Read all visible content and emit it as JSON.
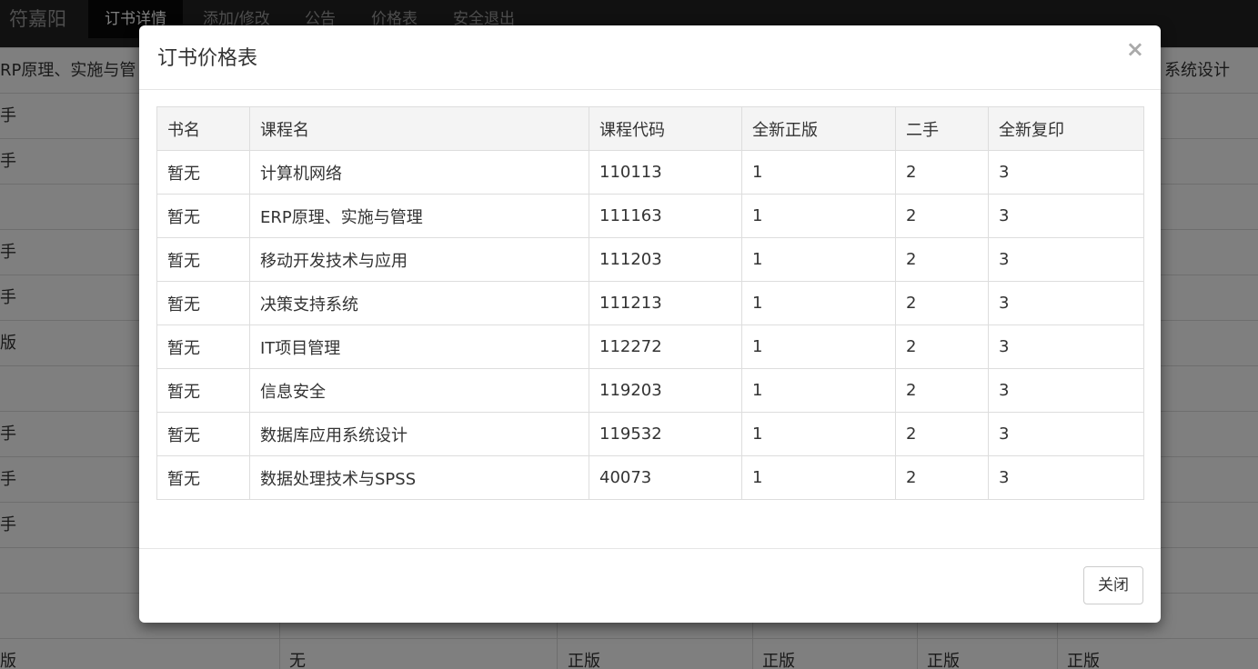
{
  "nav": {
    "brand": "符嘉阳",
    "items": [
      "订书详情",
      "添加/修改",
      "公告",
      "价格表",
      "安全退出"
    ]
  },
  "background": {
    "rows": [
      [
        "RP原理、实施与管",
        null,
        null,
        null,
        null,
        "系统设计"
      ],
      [
        "手"
      ],
      [
        "手"
      ],
      [],
      [
        "手"
      ],
      [
        "手"
      ],
      [
        "版"
      ],
      [],
      [
        "手"
      ],
      [
        "手"
      ],
      [
        "手"
      ],
      [],
      [],
      [
        "版",
        "无",
        "正版",
        "正版",
        "正版",
        "正版"
      ]
    ]
  },
  "modal": {
    "title": "订书价格表",
    "close": "×",
    "button": "关闭",
    "table": {
      "headers": [
        "书名",
        "课程名",
        "课程代码",
        "全新正版",
        "二手",
        "全新复印"
      ],
      "rows": [
        [
          "暂无",
          "计算机网络",
          "110113",
          "1",
          "2",
          "3"
        ],
        [
          "暂无",
          "ERP原理、实施与管理",
          "111163",
          "1",
          "2",
          "3"
        ],
        [
          "暂无",
          "移动开发技术与应用",
          "111203",
          "1",
          "2",
          "3"
        ],
        [
          "暂无",
          "决策支持系统",
          "111213",
          "1",
          "2",
          "3"
        ],
        [
          "暂无",
          "IT项目管理",
          "112272",
          "1",
          "2",
          "3"
        ],
        [
          "暂无",
          "信息安全",
          "119203",
          "1",
          "2",
          "3"
        ],
        [
          "暂无",
          "数据库应用系统设计",
          "119532",
          "1",
          "2",
          "3"
        ],
        [
          "暂无",
          "数据处理技术与SPSS",
          "40073",
          "1",
          "2",
          "3"
        ]
      ]
    }
  }
}
